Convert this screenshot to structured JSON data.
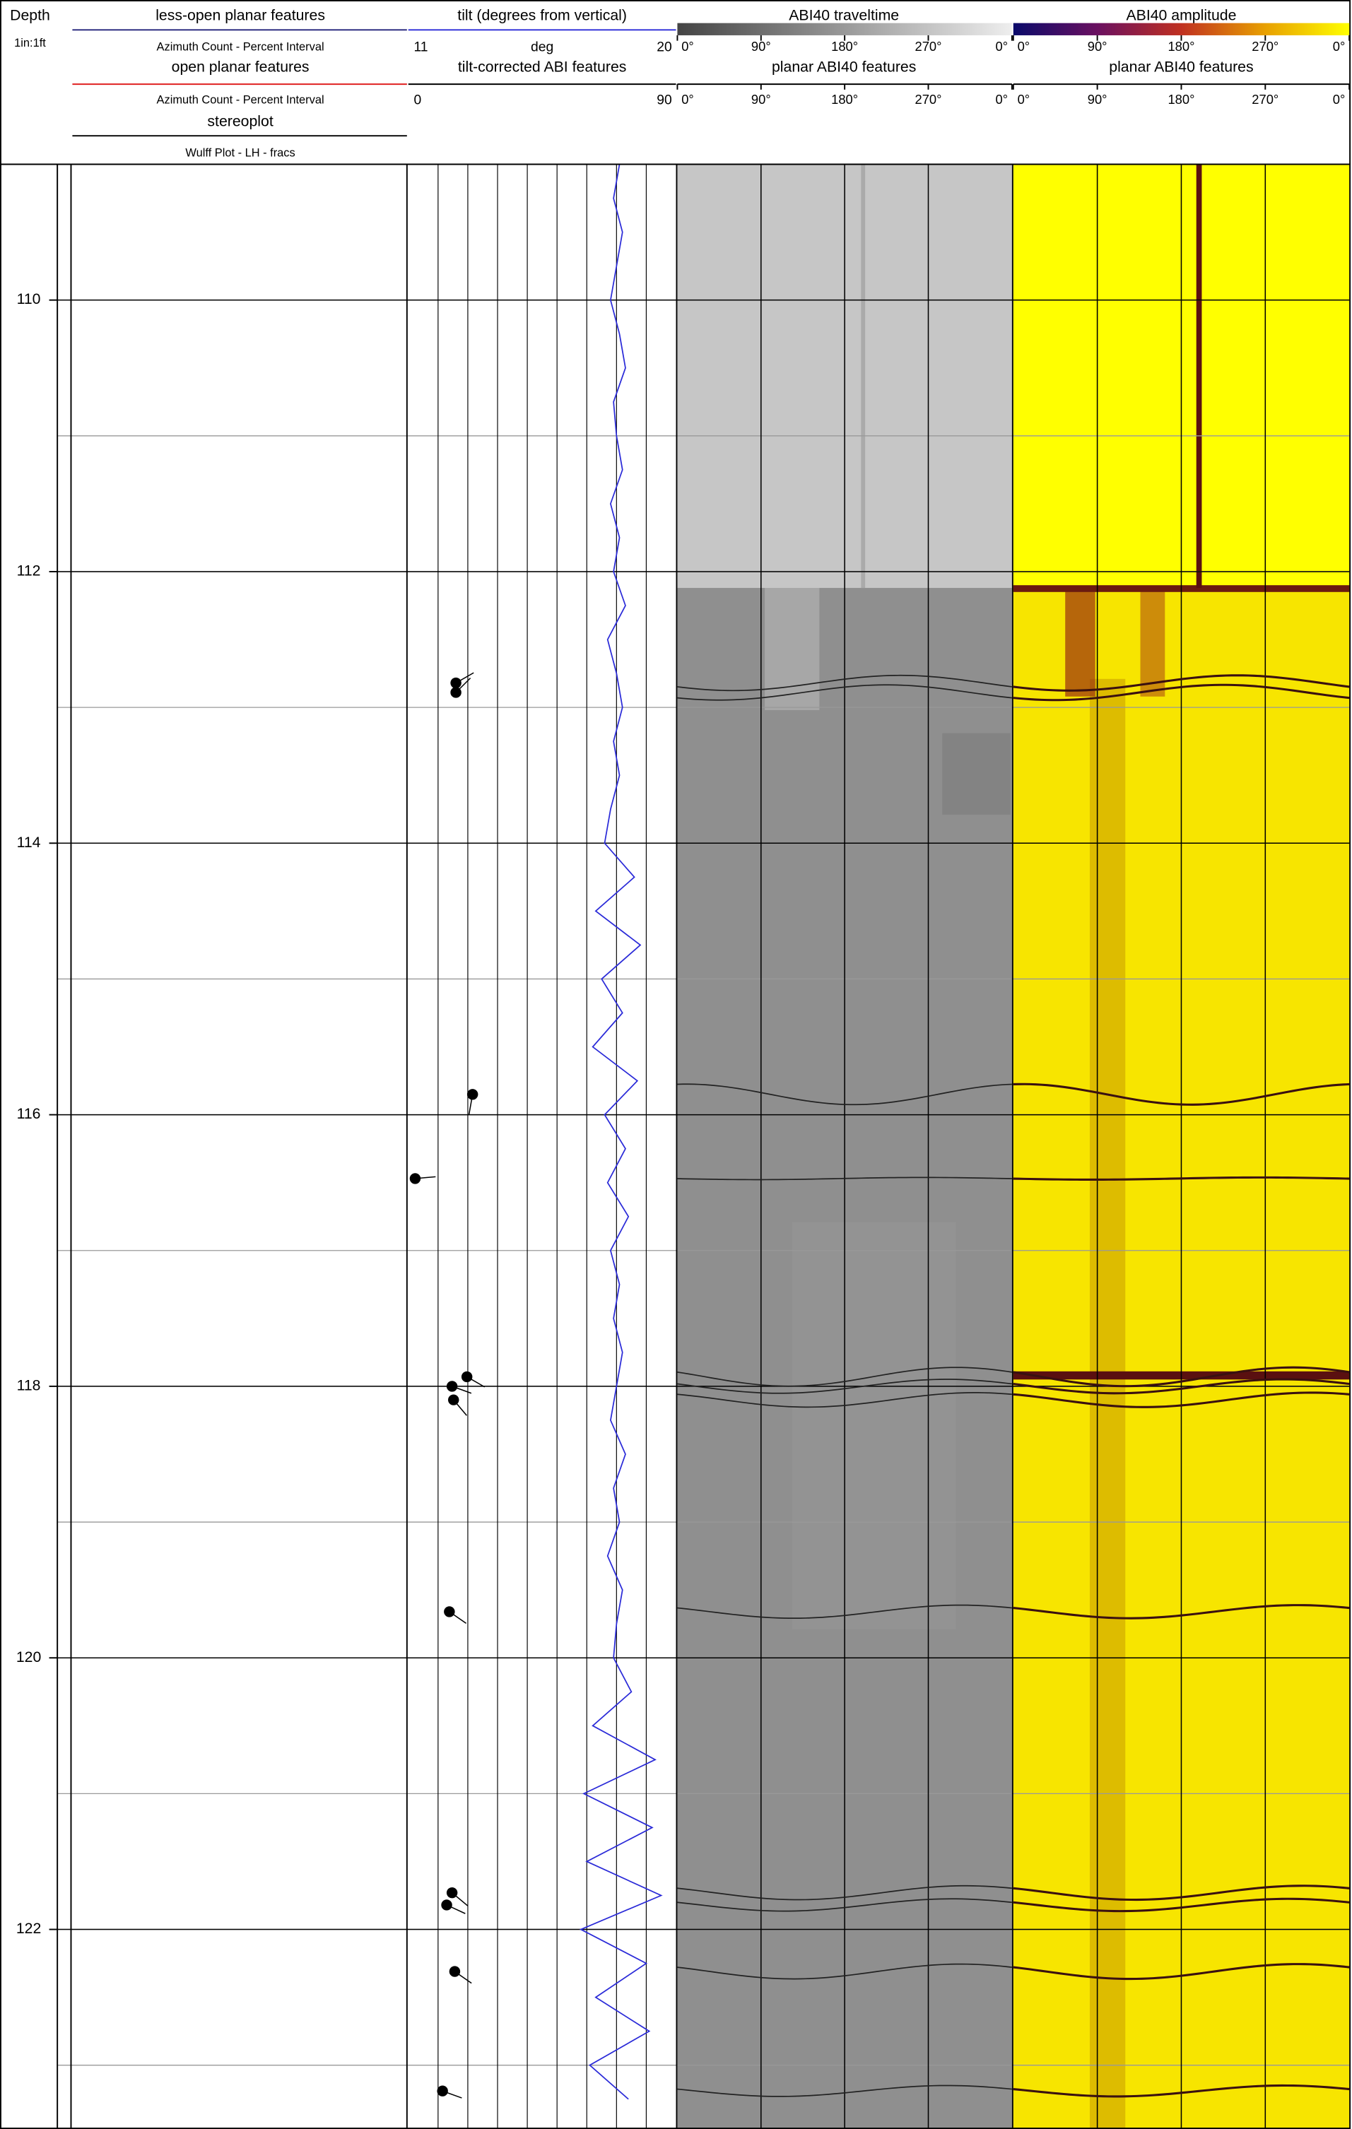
{
  "header": {
    "depth": "Depth",
    "scale": "1in:1ft",
    "less_open": {
      "title": "less-open planar features",
      "subtitle": "Azimuth Count - Percent Interval"
    },
    "open": {
      "title": "open planar features",
      "subtitle": "Azimuth Count - Percent Interval"
    },
    "stereoplot": {
      "title": "stereoplot",
      "subtitle": "Wulff Plot - LH - fracs"
    },
    "tilt": {
      "title": "tilt (degrees from vertical)",
      "unit": "deg",
      "lim": [
        11,
        20
      ],
      "color": "#2a2ad8"
    },
    "tilt_corrected": {
      "title": "tilt-corrected ABI features",
      "lim": [
        0,
        90
      ]
    },
    "traveltime": {
      "title": "ABI40 traveltime",
      "features": "planar ABI40 features"
    },
    "amplitude": {
      "title": "ABI40 amplitude",
      "features": "planar ABI40 features"
    },
    "azimuth_ticks": [
      {
        "value": 0,
        "label": "0°"
      },
      {
        "value": 90,
        "label": "90°"
      },
      {
        "value": 180,
        "label": "180°"
      },
      {
        "value": 270,
        "label": "270°"
      },
      {
        "value": 360,
        "label": "0°"
      }
    ]
  },
  "depth": {
    "lim": [
      109,
      123.47
    ],
    "ticks": [
      110,
      112,
      114,
      116,
      118,
      120,
      122
    ]
  },
  "tilt_log": {
    "depths": [
      109,
      109.25,
      109.5,
      109.75,
      110,
      110.25,
      110.5,
      110.75,
      111,
      111.25,
      111.5,
      111.75,
      112,
      112.25,
      112.5,
      112.75,
      113,
      113.25,
      113.5,
      113.75,
      114,
      114.25,
      114.5,
      114.75,
      115,
      115.25,
      115.5,
      115.75,
      116,
      116.25,
      116.5,
      116.75,
      117,
      117.25,
      117.5,
      117.75,
      118,
      118.25,
      118.5,
      118.75,
      119,
      119.25,
      119.5,
      119.75,
      120,
      120.25,
      120.5,
      120.75,
      121,
      121.25,
      121.5,
      121.75,
      122,
      122.25,
      122.5,
      122.75,
      123,
      123.25
    ],
    "values": [
      18.1,
      17.9,
      18.2,
      18.0,
      17.8,
      18.1,
      18.3,
      17.9,
      18.0,
      18.2,
      17.8,
      18.1,
      17.9,
      18.3,
      17.7,
      18.0,
      18.2,
      17.9,
      18.1,
      17.8,
      17.6,
      18.6,
      17.3,
      18.8,
      17.5,
      18.2,
      17.2,
      18.7,
      17.6,
      18.3,
      17.7,
      18.4,
      17.8,
      18.1,
      17.9,
      18.2,
      18.0,
      17.8,
      18.3,
      17.9,
      18.1,
      17.7,
      18.2,
      18.0,
      17.9,
      18.5,
      17.2,
      19.3,
      16.9,
      19.2,
      17.0,
      19.5,
      16.8,
      19.0,
      17.3,
      19.1,
      17.1,
      18.4
    ]
  },
  "tadpoles": [
    {
      "depth": 112.82,
      "tilt": 16,
      "azimuth": 60
    },
    {
      "depth": 112.89,
      "tilt": 16,
      "azimuth": 45
    },
    {
      "depth": 115.85,
      "tilt": 21.6,
      "azimuth": 190
    },
    {
      "depth": 116.47,
      "tilt": 2.3,
      "azimuth": 85
    },
    {
      "depth": 117.93,
      "tilt": 19.7,
      "azimuth": 120
    },
    {
      "depth": 118.0,
      "tilt": 14.7,
      "azimuth": 110
    },
    {
      "depth": 118.1,
      "tilt": 15.2,
      "azimuth": 140
    },
    {
      "depth": 119.66,
      "tilt": 13.8,
      "azimuth": 125
    },
    {
      "depth": 121.73,
      "tilt": 14.7,
      "azimuth": 130
    },
    {
      "depth": 121.82,
      "tilt": 12.9,
      "azimuth": 115
    },
    {
      "depth": 122.31,
      "tilt": 15.6,
      "azimuth": 125
    },
    {
      "depth": 123.19,
      "tilt": 11.5,
      "azimuth": 110
    }
  ]
}
